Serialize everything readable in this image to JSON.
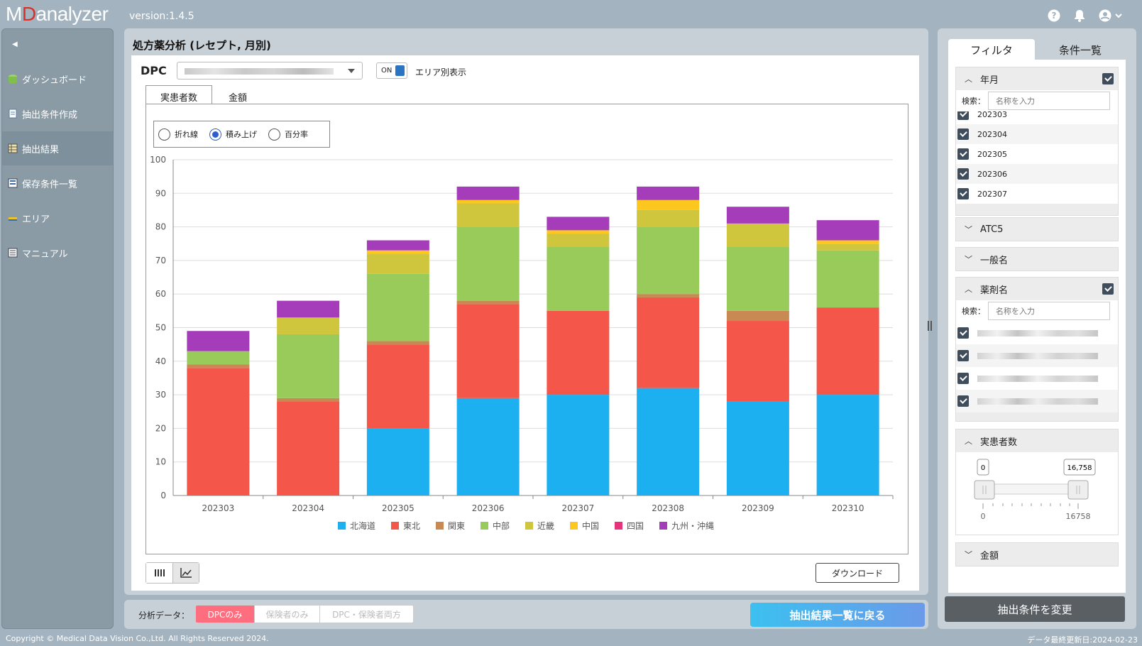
{
  "header": {
    "logo_mark": "M",
    "logo_d": "D",
    "logo_rest": "analyzer",
    "version": "version:1.4.5"
  },
  "sidebar": {
    "items": [
      {
        "label": "ダッシュボード",
        "icon": "dashboard-icon"
      },
      {
        "label": "抽出条件作成",
        "icon": "document-icon"
      },
      {
        "label": "抽出結果",
        "icon": "table-icon",
        "active": true
      },
      {
        "label": "保存条件一覧",
        "icon": "list-icon"
      },
      {
        "label": "エリア",
        "icon": "area-icon"
      },
      {
        "label": "マニュアル",
        "icon": "manual-icon"
      }
    ]
  },
  "main": {
    "title": "処方薬分析 (レセプト, 月別)",
    "dpc_label": "DPC",
    "toggle_on": "ON",
    "toggle_label": "エリア別表示",
    "tabs": [
      "実患者数",
      "金額"
    ],
    "radios": [
      "折れ線",
      "積み上げ",
      "百分率"
    ],
    "selected_radio": 1,
    "download": "ダウンロード"
  },
  "chart_data": {
    "type": "bar",
    "stacked": true,
    "categories": [
      "202303",
      "202304",
      "202305",
      "202306",
      "202307",
      "202308",
      "202309",
      "202310"
    ],
    "ylim": [
      0,
      100
    ],
    "yticks": [
      0,
      10,
      20,
      30,
      40,
      50,
      60,
      70,
      80,
      90,
      100
    ],
    "legend_position": "bottom",
    "series": [
      {
        "name": "北海道",
        "color": "#1cb0f1",
        "values": [
          0,
          0,
          20,
          29,
          30,
          32,
          28,
          30
        ]
      },
      {
        "name": "東北",
        "color": "#f5564a",
        "values": [
          38,
          28,
          25,
          28,
          25,
          27,
          24,
          26
        ]
      },
      {
        "name": "関東",
        "color": "#c88a52",
        "values": [
          1,
          1,
          1,
          1,
          0,
          1,
          3,
          0
        ]
      },
      {
        "name": "中部",
        "color": "#99cb5a",
        "values": [
          4,
          19,
          20,
          22,
          19,
          20,
          19,
          17
        ]
      },
      {
        "name": "近畿",
        "color": "#cfc63e",
        "values": [
          0,
          5,
          6,
          7,
          4,
          5,
          7,
          2
        ]
      },
      {
        "name": "中国",
        "color": "#fcc820",
        "values": [
          0,
          0,
          1,
          1,
          1,
          3,
          0,
          1
        ]
      },
      {
        "name": "四国",
        "color": "#e8337a",
        "values": [
          0,
          0,
          0,
          0,
          0,
          0,
          0,
          0
        ]
      },
      {
        "name": "九州・沖縄",
        "color": "#a53dba",
        "values": [
          6,
          5,
          3,
          4,
          4,
          4,
          5,
          6
        ]
      }
    ]
  },
  "bottom": {
    "label": "分析データ：",
    "segments": [
      "DPCのみ",
      "保険者のみ",
      "DPC・保険者両方"
    ],
    "back_button": "抽出結果一覧に戻る"
  },
  "right": {
    "tabs": [
      "フィルタ",
      "条件一覧"
    ],
    "year_month": {
      "title": "年月",
      "search_label": "検索：",
      "placeholder": "名称を入力",
      "items": [
        "202303",
        "202304",
        "202305",
        "202306",
        "202307"
      ]
    },
    "atc5": "ATC5",
    "generic": "一般名",
    "drug": {
      "title": "薬剤名",
      "search_label": "検索：",
      "placeholder": "名称を入力"
    },
    "patients": {
      "title": "実患者数",
      "min": "0",
      "max": "16758",
      "min_value": "0",
      "max_value": "16,758"
    },
    "amount": "金額",
    "change_button": "抽出条件を変更"
  },
  "footer": {
    "copyright": "Copyright © Medical Data Vision Co.,Ltd. All Rights Reserved 2024.",
    "updated": "データ最終更新日:2024-02-23"
  }
}
